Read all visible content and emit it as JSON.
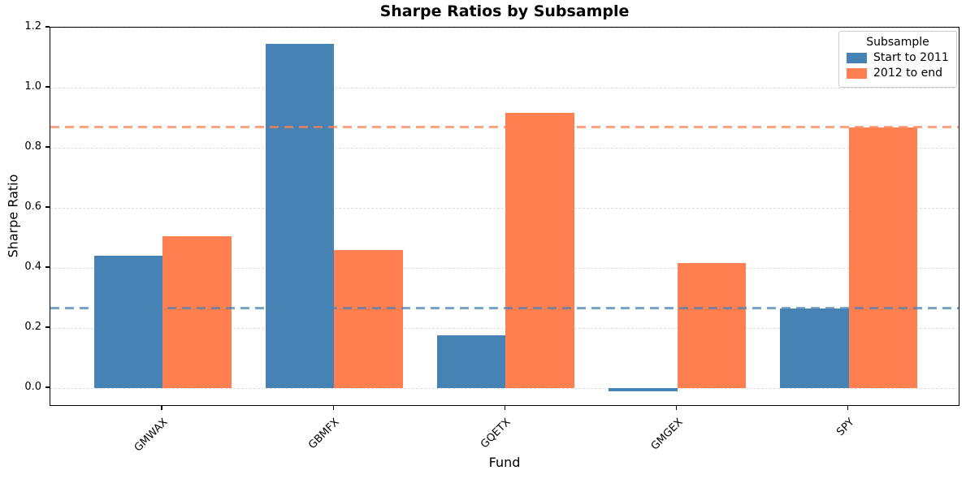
{
  "chart_data": {
    "type": "bar",
    "title": "Sharpe Ratios by Subsample",
    "xlabel": "Fund",
    "ylabel": "Sharpe Ratio",
    "categories": [
      "GMWAX",
      "GBMFX",
      "GQETX",
      "GMGEX",
      "SPY"
    ],
    "series": [
      {
        "name": "Start to 2011",
        "color": "#4682B4",
        "values": [
          0.44,
          1.145,
          0.175,
          -0.01,
          0.265
        ]
      },
      {
        "name": "2012 to end",
        "color": "#FF7F50",
        "values": [
          0.505,
          0.46,
          0.915,
          0.415,
          0.868
        ]
      }
    ],
    "reference_lines": [
      {
        "value": 0.265,
        "color": "#4682B4",
        "style": "dashed"
      },
      {
        "value": 0.868,
        "color": "#FF7F50",
        "style": "dashed"
      }
    ],
    "y_ticks": [
      0.0,
      0.2,
      0.4,
      0.6,
      0.8,
      1.0,
      1.2
    ],
    "ylim": [
      -0.062,
      1.2
    ],
    "grid": "horizontal-dashed",
    "legend": {
      "title": "Subsample",
      "position": "upper right"
    }
  }
}
